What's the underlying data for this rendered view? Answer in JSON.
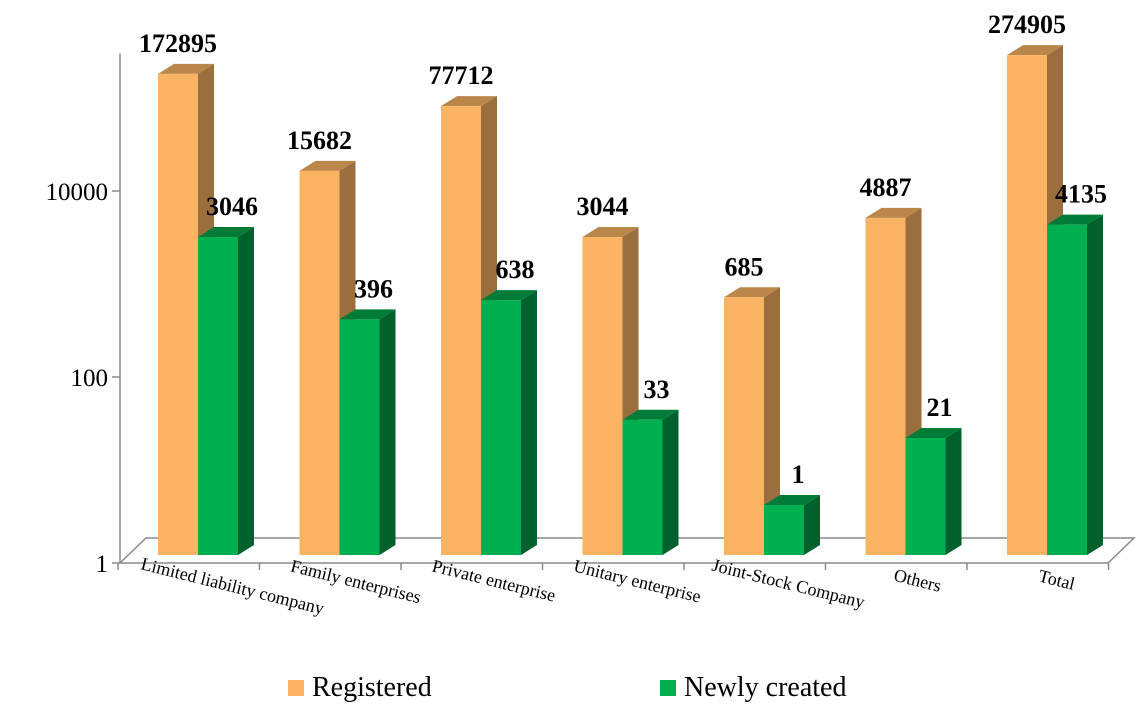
{
  "chart_data": {
    "type": "bar",
    "subtype": "3d-clustered-column",
    "y_scale": "log10",
    "ylim": [
      1,
      300000
    ],
    "yticks": [
      1,
      100,
      10000
    ],
    "ytick_labels": [
      "1",
      "100",
      "10000"
    ],
    "categories": [
      "Limited liability company",
      "Family enterprises",
      "Private enterprise",
      "Unitary enterprise",
      "Joint-Stock Company",
      "Others",
      "Total"
    ],
    "series": [
      {
        "name": "Registered",
        "color": "#F9B362",
        "values": [
          172895,
          15682,
          77712,
          3044,
          685,
          4887,
          274905
        ],
        "labels": [
          "172895",
          "15682",
          "77712",
          "3044",
          "685",
          "4887",
          "274905"
        ]
      },
      {
        "name": "Newly created",
        "color": "#00B050",
        "values": [
          3046,
          396,
          638,
          33,
          1,
          21,
          4135
        ],
        "labels": [
          "3046",
          "396",
          "638",
          "33",
          "1",
          "21",
          "4135"
        ]
      }
    ],
    "legend_position": "bottom",
    "grid": false
  }
}
